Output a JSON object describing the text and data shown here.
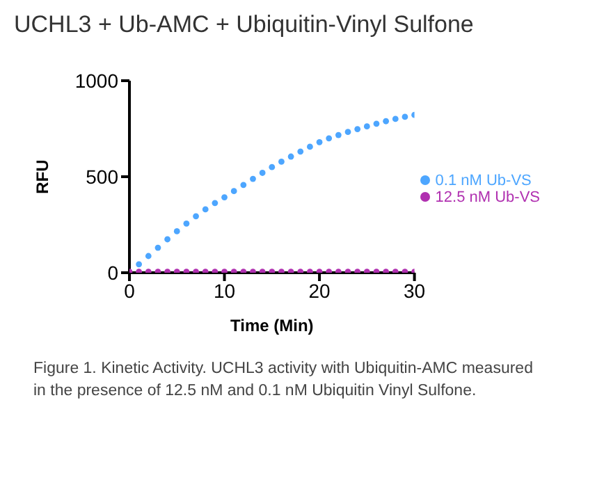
{
  "chart_data": {
    "type": "scatter",
    "title": "UCHL3 + Ub-AMC + Ubiquitin-Vinyl Sulfone",
    "xlabel": "Time (Min)",
    "ylabel": "RFU",
    "x": [
      0,
      1,
      2,
      3,
      4,
      5,
      6,
      7,
      8,
      9,
      10,
      11,
      12,
      13,
      14,
      15,
      16,
      17,
      18,
      19,
      20,
      21,
      22,
      23,
      24,
      25,
      26,
      27,
      28,
      29,
      30
    ],
    "series": [
      {
        "name": "0.1 nM Ub-VS",
        "color": "#4da6ff",
        "values": [
          null,
          44,
          87,
          130,
          174,
          216,
          256,
          294,
          330,
          363,
          393,
          425,
          457,
          489,
          520,
          550,
          578,
          605,
          631,
          656,
          680,
          700,
          717,
          733,
          748,
          762,
          776,
          789,
          801,
          812,
          822
        ]
      },
      {
        "name": "12.5 nM Ub-VS",
        "color": "#b030b0",
        "values": [
          5,
          5,
          5,
          5,
          5,
          5,
          5,
          5,
          5,
          5,
          5,
          5,
          5,
          5,
          5,
          5,
          5,
          5,
          5,
          5,
          5,
          5,
          5,
          5,
          5,
          5,
          5,
          5,
          5,
          5,
          5
        ]
      }
    ],
    "xlim": [
      0,
      30
    ],
    "xticks": [
      0,
      10,
      20,
      30
    ],
    "ylim": [
      0,
      1000
    ],
    "yticks": [
      0,
      500,
      1000
    ],
    "marker": "circle",
    "grid": false,
    "legend": "right",
    "annotations": [
      "Figure 1. Kinetic Activity. UCHL3 activity with Ubiquitin-AMC measured in the presence of 12.5 nM and 0.1 nM Ubiquitin Vinyl Sulfone."
    ]
  }
}
